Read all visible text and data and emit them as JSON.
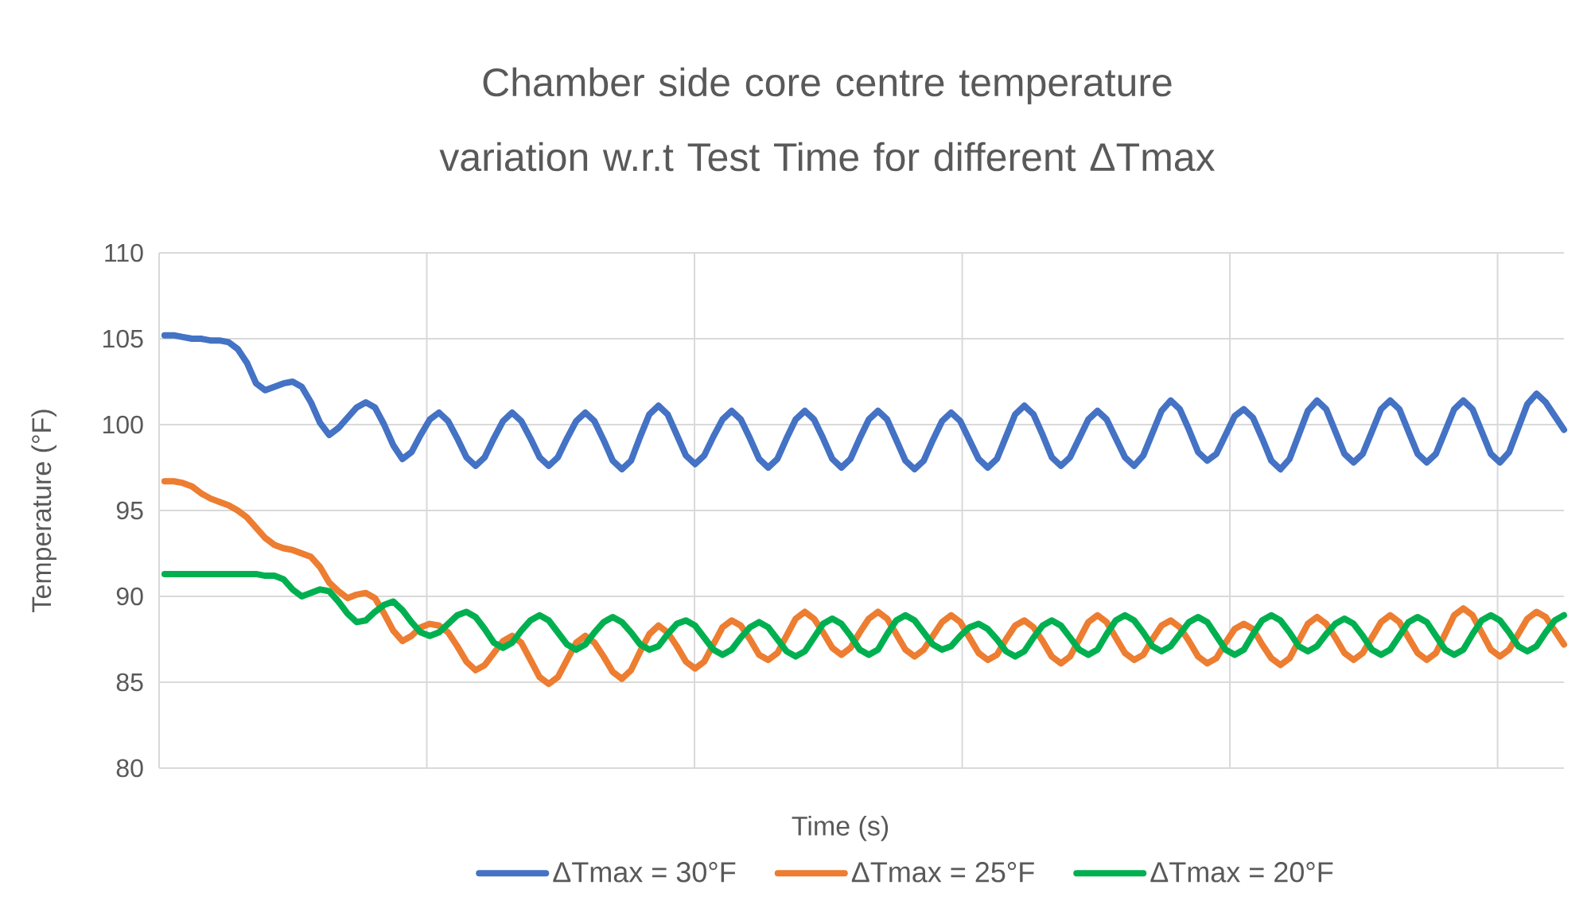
{
  "chart_data": {
    "type": "line",
    "title": "Chamber side core centre temperature variation w.r.t Test Time for different ΔTmax",
    "xlabel": "Time (s)",
    "ylabel": "Temperature (°F)",
    "categories": [
      null,
      null,
      null,
      null,
      null,
      null,
      null,
      null,
      null,
      null,
      null,
      null,
      null,
      null,
      null,
      null,
      null,
      null,
      null,
      null,
      null,
      null,
      null,
      null,
      null,
      null,
      null,
      null,
      null,
      null,
      null,
      null,
      null,
      null,
      null,
      null,
      null,
      null,
      null,
      null,
      null,
      null,
      null,
      null,
      null,
      null,
      null,
      null,
      null,
      null,
      null,
      null,
      null,
      null,
      null,
      null,
      null,
      null,
      null,
      null,
      null,
      null,
      null,
      null,
      null,
      null,
      null,
      null,
      null,
      null,
      null,
      null,
      null,
      null,
      null,
      null,
      null,
      null,
      null,
      null,
      null,
      null,
      null,
      null,
      null,
      null,
      null,
      null,
      null,
      null,
      null,
      null,
      null,
      null,
      null,
      null,
      null,
      null,
      null,
      null,
      null,
      null,
      null,
      null,
      null,
      null,
      null,
      null,
      null,
      null,
      null,
      null,
      null,
      null,
      null,
      null,
      null,
      null,
      null,
      null,
      null,
      null,
      null,
      null,
      null,
      null,
      null,
      null,
      null,
      null,
      null,
      null,
      null,
      null,
      null,
      null,
      null,
      null,
      null,
      null,
      null,
      null,
      null,
      null,
      null,
      null,
      null,
      null,
      null,
      null,
      null,
      null,
      null,
      null
    ],
    "series": [
      {
        "name": "ΔTmax = 30°F",
        "color": "#4472c4",
        "values": [
          105.2,
          105.2,
          105.1,
          105.0,
          105.0,
          104.9,
          104.9,
          104.8,
          104.4,
          103.6,
          102.4,
          102.0,
          102.2,
          102.4,
          102.5,
          102.2,
          101.3,
          100.1,
          99.4,
          99.8,
          100.4,
          101.0,
          101.3,
          101.0,
          100.0,
          98.8,
          98.0,
          98.4,
          99.4,
          100.3,
          100.7,
          100.2,
          99.2,
          98.1,
          97.6,
          98.1,
          99.2,
          100.2,
          100.7,
          100.2,
          99.2,
          98.1,
          97.6,
          98.1,
          99.2,
          100.2,
          100.7,
          100.2,
          99.1,
          97.9,
          97.4,
          97.9,
          99.3,
          100.6,
          101.1,
          100.6,
          99.4,
          98.2,
          97.7,
          98.2,
          99.3,
          100.3,
          100.8,
          100.3,
          99.2,
          98.0,
          97.5,
          98.0,
          99.2,
          100.3,
          100.8,
          100.3,
          99.2,
          98.0,
          97.5,
          98.0,
          99.2,
          100.3,
          100.8,
          100.3,
          99.1,
          97.9,
          97.4,
          97.9,
          99.1,
          100.2,
          100.7,
          100.2,
          99.1,
          98.0,
          97.5,
          98.0,
          99.3,
          100.6,
          101.1,
          100.6,
          99.4,
          98.1,
          97.6,
          98.1,
          99.2,
          100.3,
          100.8,
          100.3,
          99.2,
          98.1,
          97.6,
          98.2,
          99.5,
          100.8,
          101.4,
          100.9,
          99.7,
          98.4,
          97.9,
          98.3,
          99.4,
          100.5,
          100.9,
          100.4,
          99.2,
          97.9,
          97.4,
          98.0,
          99.4,
          100.8,
          101.4,
          100.9,
          99.6,
          98.3,
          97.8,
          98.3,
          99.6,
          100.9,
          101.4,
          100.9,
          99.6,
          98.3,
          97.8,
          98.3,
          99.6,
          100.9,
          101.4,
          100.9,
          99.6,
          98.3,
          97.8,
          98.4,
          99.8,
          101.2,
          101.8,
          101.3,
          100.5,
          99.7
        ]
      },
      {
        "name": "ΔTmax = 25°F",
        "color": "#ed7d31",
        "values": [
          96.7,
          96.7,
          96.6,
          96.4,
          96.0,
          95.7,
          95.5,
          95.3,
          95.0,
          94.6,
          94.0,
          93.4,
          93.0,
          92.8,
          92.7,
          92.5,
          92.3,
          91.7,
          90.8,
          90.3,
          89.9,
          90.1,
          90.2,
          89.9,
          89.0,
          88.0,
          87.4,
          87.7,
          88.2,
          88.4,
          88.3,
          87.9,
          87.1,
          86.2,
          85.7,
          86.0,
          86.7,
          87.4,
          87.7,
          87.3,
          86.3,
          85.3,
          84.9,
          85.3,
          86.3,
          87.3,
          87.7,
          87.3,
          86.5,
          85.6,
          85.2,
          85.7,
          86.8,
          87.8,
          88.3,
          87.9,
          87.1,
          86.2,
          85.8,
          86.2,
          87.2,
          88.2,
          88.6,
          88.3,
          87.5,
          86.6,
          86.3,
          86.7,
          87.7,
          88.7,
          89.1,
          88.7,
          87.9,
          87.0,
          86.6,
          87.0,
          87.9,
          88.7,
          89.1,
          88.7,
          87.8,
          86.9,
          86.5,
          86.9,
          87.7,
          88.5,
          88.9,
          88.5,
          87.6,
          86.7,
          86.3,
          86.6,
          87.5,
          88.3,
          88.6,
          88.2,
          87.4,
          86.5,
          86.1,
          86.5,
          87.5,
          88.5,
          88.9,
          88.5,
          87.6,
          86.7,
          86.3,
          86.6,
          87.5,
          88.3,
          88.6,
          88.2,
          87.4,
          86.5,
          86.1,
          86.4,
          87.3,
          88.1,
          88.4,
          88.1,
          87.2,
          86.4,
          86.0,
          86.4,
          87.4,
          88.4,
          88.8,
          88.4,
          87.6,
          86.7,
          86.3,
          86.7,
          87.6,
          88.5,
          88.9,
          88.5,
          87.6,
          86.7,
          86.3,
          86.7,
          87.8,
          88.9,
          89.3,
          88.9,
          87.9,
          86.9,
          86.5,
          86.9,
          87.8,
          88.7,
          89.1,
          88.8,
          88.0,
          87.2
        ]
      },
      {
        "name": "ΔTmax = 20°F",
        "color": "#00b050",
        "values": [
          91.3,
          91.3,
          91.3,
          91.3,
          91.3,
          91.3,
          91.3,
          91.3,
          91.3,
          91.3,
          91.3,
          91.2,
          91.2,
          91.0,
          90.4,
          90.0,
          90.2,
          90.4,
          90.3,
          89.7,
          89.0,
          88.5,
          88.6,
          89.1,
          89.5,
          89.7,
          89.2,
          88.5,
          87.9,
          87.7,
          87.9,
          88.4,
          88.9,
          89.1,
          88.8,
          88.1,
          87.3,
          87.0,
          87.3,
          88.0,
          88.6,
          88.9,
          88.6,
          87.9,
          87.2,
          86.9,
          87.2,
          87.9,
          88.5,
          88.8,
          88.5,
          87.9,
          87.2,
          86.9,
          87.1,
          87.8,
          88.4,
          88.6,
          88.3,
          87.6,
          86.9,
          86.6,
          86.9,
          87.6,
          88.2,
          88.5,
          88.2,
          87.5,
          86.8,
          86.5,
          86.8,
          87.6,
          88.4,
          88.7,
          88.4,
          87.7,
          86.9,
          86.6,
          86.9,
          87.8,
          88.6,
          88.9,
          88.6,
          87.9,
          87.2,
          86.9,
          87.1,
          87.7,
          88.2,
          88.4,
          88.1,
          87.5,
          86.8,
          86.5,
          86.8,
          87.6,
          88.3,
          88.6,
          88.3,
          87.6,
          86.9,
          86.6,
          86.9,
          87.8,
          88.6,
          88.9,
          88.6,
          87.9,
          87.1,
          86.8,
          87.1,
          87.8,
          88.5,
          88.8,
          88.5,
          87.7,
          86.9,
          86.6,
          86.9,
          87.8,
          88.6,
          88.9,
          88.6,
          87.9,
          87.1,
          86.8,
          87.1,
          87.8,
          88.4,
          88.7,
          88.4,
          87.7,
          86.9,
          86.6,
          86.9,
          87.7,
          88.5,
          88.8,
          88.5,
          87.7,
          86.9,
          86.6,
          86.9,
          87.8,
          88.6,
          88.9,
          88.6,
          87.9,
          87.1,
          86.8,
          87.1,
          87.9,
          88.6,
          88.9
        ]
      }
    ],
    "ylim": [
      80,
      110
    ],
    "yticks": [
      80,
      85,
      90,
      95,
      100,
      105,
      110
    ],
    "grid": true,
    "legend": "bottom",
    "tick_labels": "y"
  }
}
